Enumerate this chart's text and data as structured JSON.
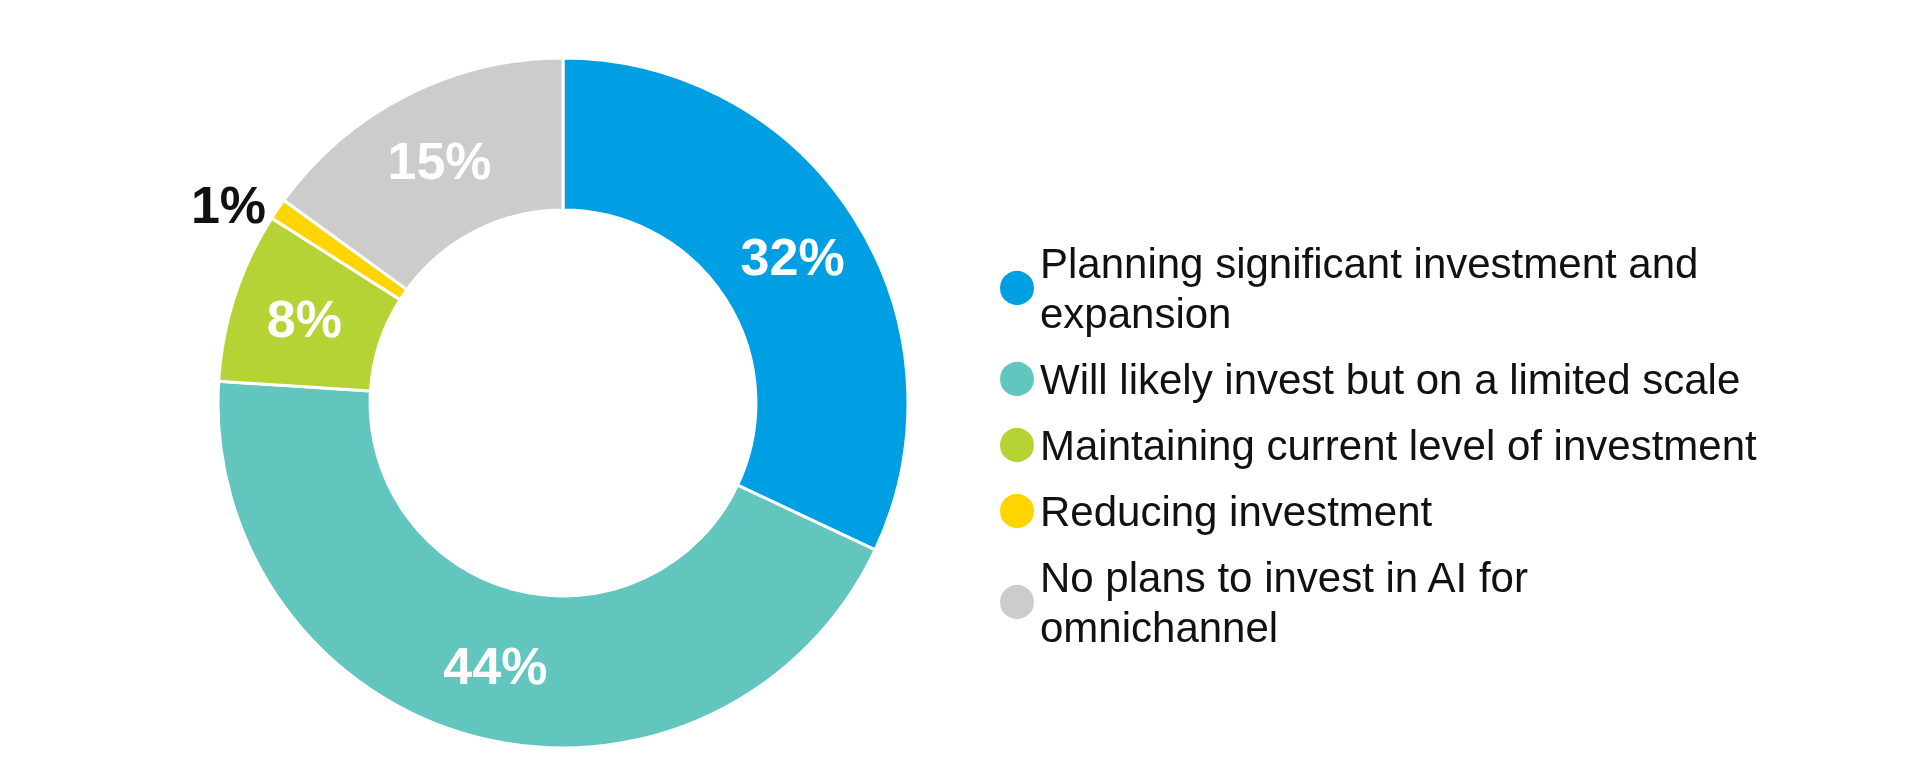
{
  "chart_data": {
    "type": "donut",
    "categories": [
      "Planning significant investment and expansion",
      "Will likely invest but on a limited scale",
      "Maintaining current level of investment",
      "Reducing investment",
      "No plans to invest in AI for omnichannel"
    ],
    "values": [
      32,
      44,
      8,
      1,
      15
    ],
    "colors": [
      "#009fe3",
      "#62c6bf",
      "#b5d334",
      "#ffd500",
      "#cccccc"
    ],
    "value_labels": [
      "32%",
      "44%",
      "8%",
      "1%",
      "15%"
    ],
    "legend": "right"
  }
}
